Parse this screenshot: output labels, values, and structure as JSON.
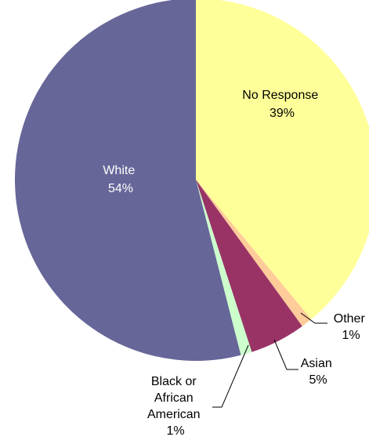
{
  "chart_data": {
    "type": "pie",
    "slices": [
      {
        "label": "No Response",
        "value": 39,
        "percent_label": "39%",
        "color": "#FFFF99"
      },
      {
        "label": "Other",
        "value": 1,
        "percent_label": "1%",
        "color": "#FFCC99"
      },
      {
        "label": "Asian",
        "value": 5,
        "percent_label": "5%",
        "color": "#993366"
      },
      {
        "label": "Black or African American",
        "value": 1,
        "percent_label": "1%",
        "color": "#CCFFCC"
      },
      {
        "label": "White",
        "value": 54,
        "percent_label": "54%",
        "color": "#666699"
      }
    ],
    "start_angle_deg": 0,
    "direction": "clockwise",
    "legend": "none",
    "data_labels": "category name and percent"
  }
}
